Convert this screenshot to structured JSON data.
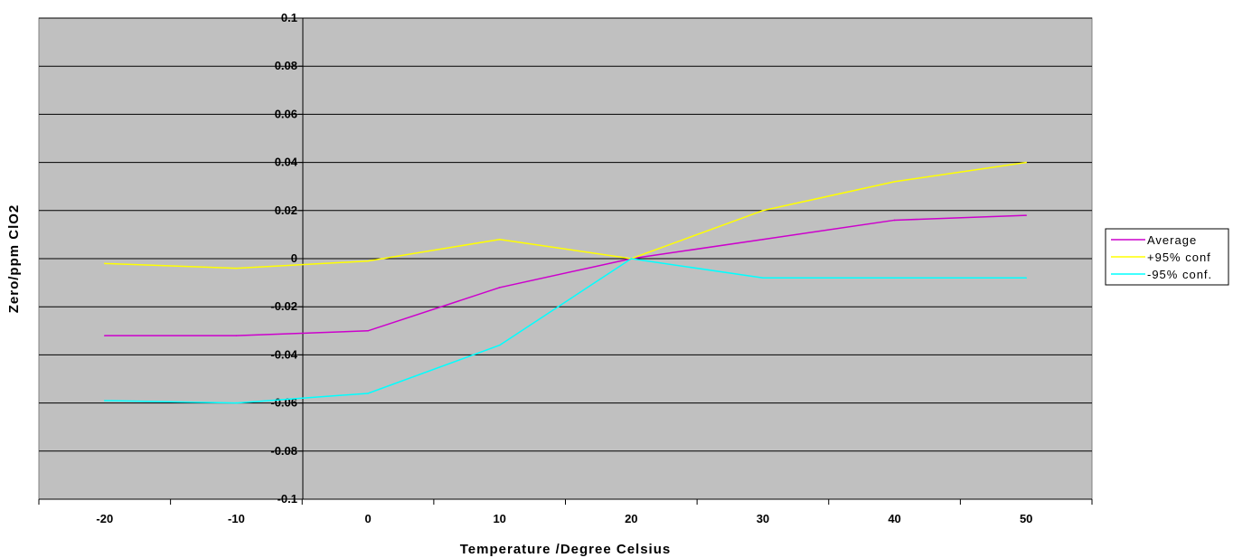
{
  "chart_data": {
    "type": "line",
    "title": "",
    "xlabel": "Temperature /Degree Celsius",
    "ylabel": "Zero/ppm ClO2",
    "categories": [
      "-20",
      "-10",
      "0",
      "10",
      "20",
      "30",
      "40",
      "50"
    ],
    "ylim": [
      -0.1,
      0.1
    ],
    "yticks": [
      "0.1",
      "0.08",
      "0.06",
      "0.04",
      "0.02",
      "0",
      "-0.02",
      "-0.04",
      "-0.06",
      "-0.08",
      "-0.1"
    ],
    "grid": "horizontal",
    "legend_position": "right",
    "plot_background": "#c0c0c0",
    "series": [
      {
        "name": "Average",
        "color": "#cc00cc",
        "values": [
          -0.032,
          -0.032,
          -0.03,
          -0.012,
          0.0,
          0.008,
          0.016,
          0.018
        ]
      },
      {
        "name": "+95% conf",
        "color": "#ffff00",
        "values": [
          -0.002,
          -0.004,
          -0.001,
          0.008,
          0.0,
          0.02,
          0.032,
          0.04
        ]
      },
      {
        "name": "-95% conf.",
        "color": "#00ffff",
        "values": [
          -0.059,
          -0.06,
          -0.056,
          -0.036,
          0.0,
          -0.008,
          -0.008,
          -0.008
        ]
      }
    ]
  }
}
